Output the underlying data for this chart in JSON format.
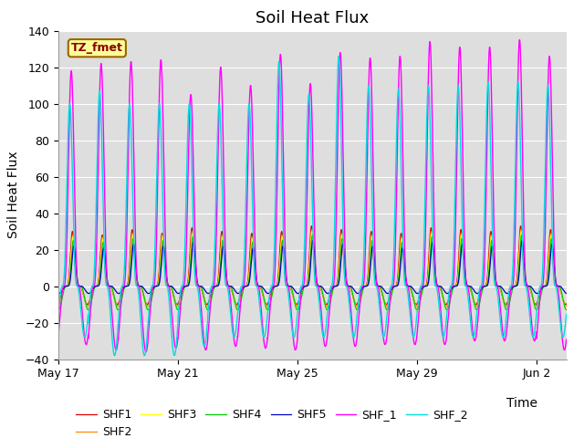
{
  "title": "Soil Heat Flux",
  "ylabel": "Soil Heat Flux",
  "xlabel": "Time",
  "ylim": [
    -40,
    140
  ],
  "yticks": [
    -40,
    -20,
    0,
    20,
    40,
    60,
    80,
    100,
    120,
    140
  ],
  "xtick_labels": [
    "May 17",
    "May 21",
    "May 25",
    "May 29",
    "Jun 2"
  ],
  "annotation_text": "TZ_fmet",
  "annotation_bg": "#ffff99",
  "annotation_border": "#996600",
  "series_colors": {
    "SHF1": "#dd0000",
    "SHF2": "#ff8800",
    "SHF3": "#ffff00",
    "SHF4": "#00cc00",
    "SHF5": "#0000cc",
    "SHF_1": "#ff00ff",
    "SHF_2": "#00dddd"
  },
  "plot_bg": "#dedede",
  "fig_bg": "#ffffff",
  "grid_color": "#ffffff",
  "title_fontsize": 13,
  "axis_label_fontsize": 10,
  "legend_fontsize": 9,
  "num_days": 17,
  "points_per_day": 288,
  "phase_shifts": {
    "SHF1": 0.03,
    "SHF2": 0.02,
    "SHF3": 0.01,
    "SHF4": 0.0,
    "SHF5": -0.015,
    "SHF_1": 0.07,
    "SHF_2": 0.12
  },
  "day_peak_fracs": {
    "SHF1": 0.45,
    "SHF2": 0.45,
    "SHF3": 0.45,
    "SHF4": 0.45,
    "SHF5": 0.45,
    "SHF_1": 0.45,
    "SHF_2": 0.45
  },
  "peak_amplitudes": {
    "SHF1": [
      30,
      28,
      31,
      29,
      32,
      30,
      29,
      30,
      33,
      31,
      30,
      29,
      32,
      31,
      30,
      33,
      31
    ],
    "SHF2": [
      28,
      27,
      29,
      28,
      30,
      28,
      27,
      28,
      31,
      29,
      28,
      27,
      30,
      29,
      28,
      31,
      29
    ],
    "SHF3": [
      27,
      26,
      28,
      27,
      29,
      27,
      26,
      27,
      30,
      28,
      27,
      26,
      29,
      28,
      27,
      30,
      28
    ],
    "SHF4": [
      25,
      24,
      26,
      25,
      27,
      25,
      24,
      25,
      28,
      26,
      25,
      24,
      27,
      26,
      25,
      28,
      26
    ],
    "SHF5": [
      22,
      21,
      23,
      22,
      24,
      22,
      21,
      22,
      25,
      23,
      22,
      21,
      24,
      23,
      22,
      25,
      23
    ],
    "SHF_1": [
      118,
      122,
      123,
      124,
      105,
      120,
      110,
      127,
      111,
      128,
      125,
      126,
      134,
      131,
      131,
      135,
      126
    ],
    "SHF_2": [
      100,
      107,
      100,
      100,
      100,
      100,
      100,
      123,
      105,
      126,
      110,
      108,
      110,
      110,
      112,
      112,
      110
    ]
  },
  "trough_amplitudes": {
    "SHF1": [
      -10,
      -10,
      -10,
      -10,
      -10,
      -10,
      -10,
      -10,
      -10,
      -10,
      -10,
      -10,
      -10,
      -10,
      -10,
      -10,
      -10
    ],
    "SHF2": [
      -11,
      -11,
      -11,
      -11,
      -11,
      -11,
      -11,
      -11,
      -11,
      -11,
      -11,
      -11,
      -11,
      -11,
      -11,
      -11,
      -11
    ],
    "SHF3": [
      -12,
      -12,
      -12,
      -12,
      -12,
      -12,
      -12,
      -12,
      -12,
      -12,
      -12,
      -12,
      -12,
      -12,
      -12,
      -12,
      -12
    ],
    "SHF4": [
      -13,
      -13,
      -13,
      -13,
      -13,
      -13,
      -13,
      -13,
      -13,
      -13,
      -13,
      -13,
      -13,
      -13,
      -13,
      -13,
      -13
    ],
    "SHF5": [
      -4,
      -4,
      -4,
      -4,
      -4,
      -4,
      -4,
      -4,
      -4,
      -4,
      -4,
      -4,
      -4,
      -4,
      -4,
      -4,
      -4
    ],
    "SHF_1": [
      -32,
      -35,
      -36,
      -34,
      -35,
      -33,
      -34,
      -35,
      -33,
      -33,
      -32,
      -32,
      -32,
      -30,
      -30,
      -30,
      -35
    ],
    "SHF_2": [
      -28,
      -38,
      -38,
      -38,
      -33,
      -28,
      -28,
      -28,
      -28,
      -28,
      -28,
      -28,
      -28,
      -28,
      -28,
      -28,
      -28
    ]
  },
  "peak_power": {
    "SHF1": 6,
    "SHF2": 6,
    "SHF3": 6,
    "SHF4": 6,
    "SHF5": 6,
    "SHF_1": 3,
    "SHF_2": 3
  },
  "trough_power": {
    "SHF1": 2,
    "SHF2": 2,
    "SHF3": 2,
    "SHF4": 2,
    "SHF5": 2,
    "SHF_1": 2,
    "SHF_2": 2
  }
}
